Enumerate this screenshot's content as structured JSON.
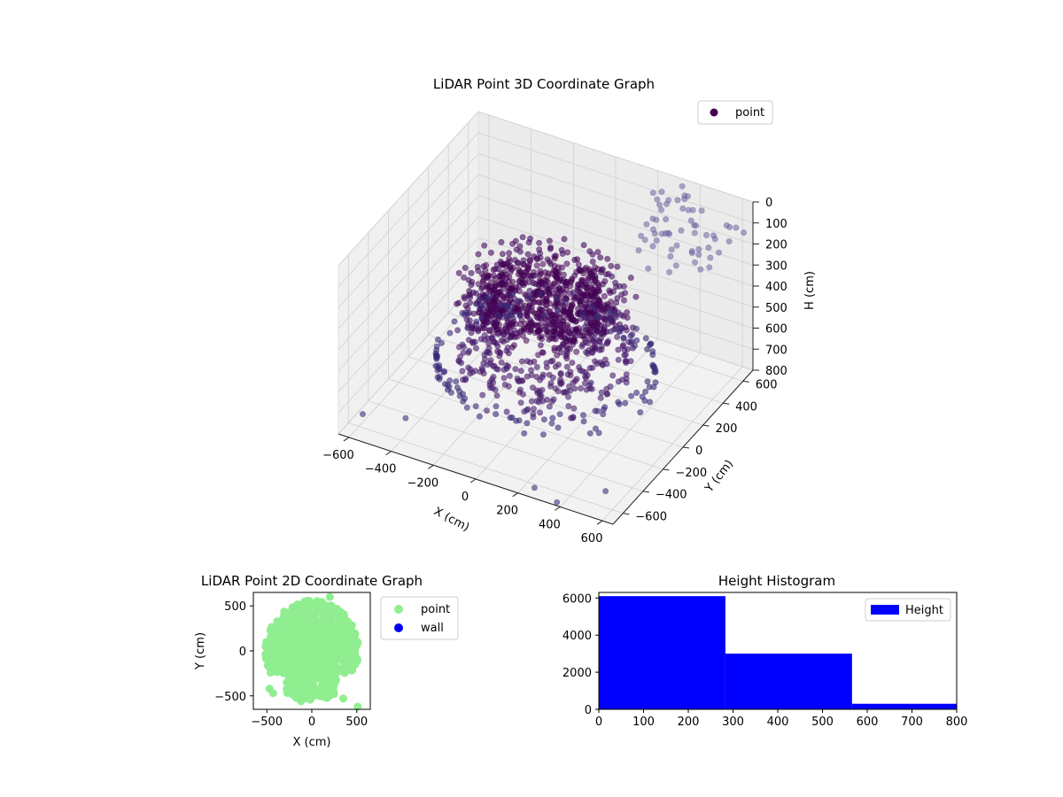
{
  "chart_data": [
    {
      "type": "scatter3d",
      "title": "LiDAR Point 3D Coordinate Graph",
      "xlabel": "X (cm)",
      "ylabel": "Y (cm)",
      "zlabel": "H (cm)",
      "xlim": [
        -650,
        650
      ],
      "ylim": [
        -700,
        700
      ],
      "zlim": [
        800,
        0
      ],
      "xticks": [
        -600,
        -400,
        -200,
        0,
        200,
        400,
        600
      ],
      "yticks": [
        -600,
        -400,
        -200,
        0,
        200,
        400,
        600
      ],
      "zticks": [
        0,
        100,
        200,
        300,
        400,
        500,
        600,
        700,
        800
      ],
      "grid": true,
      "legend": {
        "position": "top-right",
        "entries": [
          "point"
        ]
      },
      "series": [
        {
          "name": "point",
          "colormap": "viridis",
          "color": "#440154"
        }
      ],
      "point_groups": [
        {
          "shape": "ring",
          "radius": 430,
          "h": 620,
          "count": 90
        },
        {
          "shape": "disc",
          "radius": 360,
          "h": 470,
          "count": 260
        },
        {
          "shape": "disc",
          "radius": 300,
          "h": 280,
          "count": 200
        },
        {
          "shape": "sparse-high",
          "h": [
            0,
            120
          ],
          "count": 60
        }
      ]
    },
    {
      "type": "scatter",
      "title": "LiDAR Point 2D Coordinate Graph",
      "xlabel": "X (cm)",
      "ylabel": "Y (cm)",
      "xlim": [
        -650,
        650
      ],
      "ylim": [
        -650,
        650
      ],
      "xticks": [
        -500,
        0,
        500
      ],
      "yticks": [
        -500,
        0,
        500
      ],
      "legend": {
        "position": "outside-right",
        "entries": [
          "point",
          "wall"
        ]
      },
      "series": [
        {
          "name": "point",
          "color": "#90ee90"
        },
        {
          "name": "wall",
          "color": "#0000ee"
        }
      ]
    },
    {
      "type": "bar",
      "title": "Height Histogram",
      "xlabel": "",
      "ylabel": "",
      "xlim": [
        0,
        800
      ],
      "ylim": [
        0,
        6300
      ],
      "xticks": [
        0,
        100,
        200,
        300,
        400,
        500,
        600,
        700,
        800
      ],
      "yticks": [
        0,
        2000,
        4000,
        6000
      ],
      "legend": {
        "position": "top-right",
        "entries": [
          "Height"
        ]
      },
      "series": [
        {
          "name": "Height",
          "color": "#0000ff",
          "bins": [
            [
              0,
              283
            ],
            [
              283,
              566
            ],
            [
              566,
              800
            ]
          ],
          "values": [
            6100,
            3000,
            300
          ]
        }
      ]
    }
  ]
}
